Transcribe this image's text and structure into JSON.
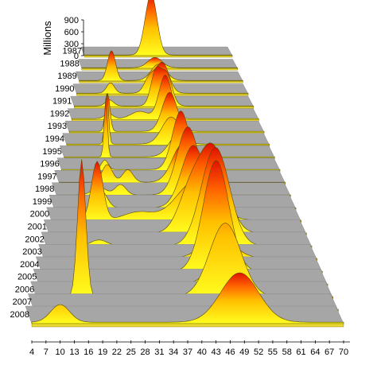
{
  "chart_data": {
    "type": "area",
    "title": "",
    "ylabel": "Millions",
    "ylim": [
      0,
      900
    ],
    "yticks": [
      "900",
      "600",
      "300",
      "0"
    ],
    "xlim": [
      4,
      70
    ],
    "xticks": [
      "4",
      "7",
      "10",
      "13",
      "16",
      "19",
      "22",
      "25",
      "28",
      "31",
      "34",
      "37",
      "40",
      "43",
      "46",
      "49",
      "52",
      "55",
      "58",
      "61",
      "64",
      "67",
      "70"
    ],
    "grid": false,
    "legend": "none",
    "series": [
      {
        "name": "1987",
        "peaks": [
          {
            "x": 34,
            "y": 720,
            "w": 2.5
          },
          {
            "x": 31,
            "y": 80,
            "w": 2
          }
        ]
      },
      {
        "name": "1988",
        "peaks": [
          {
            "x": 35,
            "y": 120,
            "w": 3
          }
        ]
      },
      {
        "name": "1989",
        "peaks": [
          {
            "x": 17,
            "y": 330,
            "w": 1.6
          },
          {
            "x": 36,
            "y": 180,
            "w": 3
          }
        ]
      },
      {
        "name": "1990",
        "peaks": [
          {
            "x": 17,
            "y": 110,
            "w": 1.5
          },
          {
            "x": 37,
            "y": 320,
            "w": 2.5
          },
          {
            "x": 32,
            "y": 160,
            "w": 2
          }
        ]
      },
      {
        "name": "1991",
        "peaks": [
          {
            "x": 17,
            "y": 60,
            "w": 1.5
          },
          {
            "x": 34,
            "y": 340,
            "w": 1.8
          },
          {
            "x": 38,
            "y": 320,
            "w": 2
          }
        ]
      },
      {
        "name": "1992",
        "peaks": [
          {
            "x": 17,
            "y": 50,
            "w": 1.5
          },
          {
            "x": 28,
            "y": 70,
            "w": 3
          },
          {
            "x": 37,
            "y": 420,
            "w": 2.2
          }
        ]
      },
      {
        "name": "1993",
        "peaks": [
          {
            "x": 17,
            "y": 350,
            "w": 0.8
          },
          {
            "x": 38,
            "y": 360,
            "w": 2.5
          }
        ]
      },
      {
        "name": "1994",
        "peaks": [
          {
            "x": 17,
            "y": 450,
            "w": 0.6
          },
          {
            "x": 38,
            "y": 240,
            "w": 3
          }
        ]
      },
      {
        "name": "1995",
        "peaks": [
          {
            "x": 17,
            "y": 500,
            "w": 0.5
          },
          {
            "x": 40,
            "y": 200,
            "w": 3
          }
        ]
      },
      {
        "name": "1996",
        "peaks": [
          {
            "x": 17,
            "y": 80,
            "w": 1
          },
          {
            "x": 40,
            "y": 480,
            "w": 2.5
          }
        ]
      },
      {
        "name": "1997",
        "peaks": [
          {
            "x": 18,
            "y": 140,
            "w": 1.5
          },
          {
            "x": 24,
            "y": 100,
            "w": 1.5
          },
          {
            "x": 40,
            "y": 300,
            "w": 3
          }
        ]
      },
      {
        "name": "1998",
        "peaks": [
          {
            "x": 16,
            "y": 60,
            "w": 2
          },
          {
            "x": 22,
            "y": 80,
            "w": 1.5
          },
          {
            "x": 41,
            "y": 520,
            "w": 3
          }
        ]
      },
      {
        "name": "1999",
        "peaks": [
          {
            "x": 17,
            "y": 120,
            "w": 1.5
          },
          {
            "x": 42,
            "y": 460,
            "w": 3.2
          }
        ]
      },
      {
        "name": "2000",
        "peaks": [
          {
            "x": 16,
            "y": 420,
            "w": 1.5
          },
          {
            "x": 27,
            "y": 60,
            "w": 4
          },
          {
            "x": 42,
            "y": 280,
            "w": 5
          }
        ]
      },
      {
        "name": "2001",
        "peaks": [
          {
            "x": 46,
            "y": 580,
            "w": 3.5
          },
          {
            "x": 40,
            "y": 260,
            "w": 3
          }
        ]
      },
      {
        "name": "2002",
        "peaks": [
          {
            "x": 46,
            "y": 660,
            "w": 3.5
          },
          {
            "x": 17,
            "y": 40,
            "w": 2
          }
        ]
      },
      {
        "name": "2003",
        "peaks": [
          {
            "x": 46,
            "y": 130,
            "w": 4
          }
        ]
      },
      {
        "name": "2004",
        "peaks": [
          {
            "x": 45,
            "y": 700,
            "w": 3
          }
        ]
      },
      {
        "name": "2005",
        "peaks": [
          {
            "x": 46,
            "y": 180,
            "w": 3
          }
        ]
      },
      {
        "name": "2006",
        "peaks": [
          {
            "x": 14,
            "y": 820,
            "w": 0.9
          },
          {
            "x": 46,
            "y": 440,
            "w": 3.5
          }
        ]
      },
      {
        "name": "2007",
        "peaks": [
          {
            "x": 48,
            "y": 120,
            "w": 3
          }
        ]
      },
      {
        "name": "2008",
        "peaks": [
          {
            "x": 10,
            "y": 100,
            "w": 2
          },
          {
            "x": 48,
            "y": 280,
            "w": 4
          }
        ]
      }
    ]
  }
}
